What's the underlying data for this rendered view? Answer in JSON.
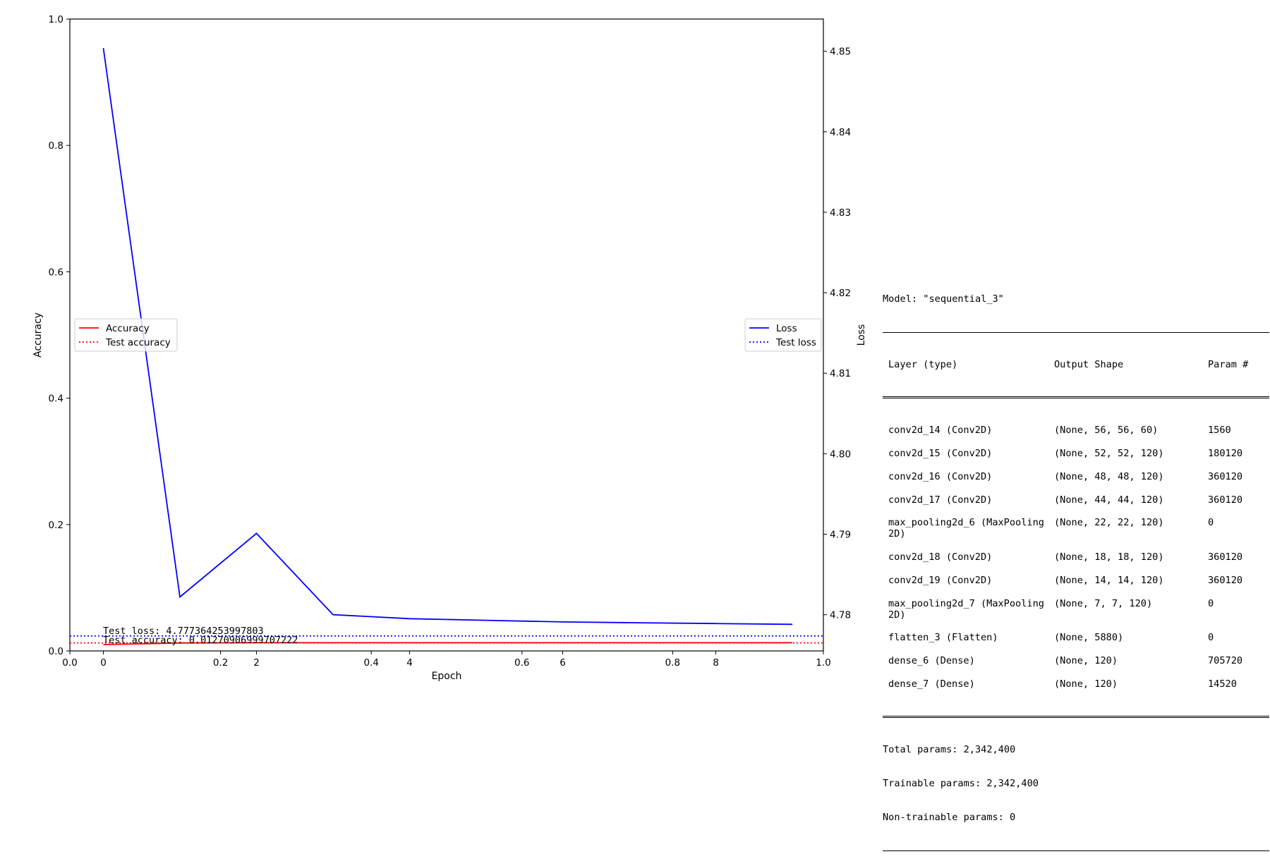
{
  "chart_data": {
    "type": "line",
    "xlabel": "Epoch",
    "ylabel_left": "Accuracy",
    "ylabel_right": "Loss",
    "x": [
      0,
      1,
      2,
      3,
      4,
      5,
      6,
      7,
      8,
      9
    ],
    "x_ticks": [
      "0",
      "2",
      "4",
      "6",
      "8"
    ],
    "overlay_x_ticks": [
      "0.0",
      "0.2",
      "0.4",
      "0.6",
      "0.8",
      "1.0"
    ],
    "left_axis": {
      "ylim": [
        0.0,
        1.0
      ],
      "ticks": [
        "0.0",
        "0.2",
        "0.4",
        "0.6",
        "0.8",
        "1.0"
      ]
    },
    "right_axis": {
      "ylim": [
        4.7755,
        4.854
      ],
      "ticks": [
        "4.78",
        "4.79",
        "4.80",
        "4.81",
        "4.82",
        "4.83",
        "4.84",
        "4.85"
      ]
    },
    "series": [
      {
        "name": "Accuracy",
        "axis": "left",
        "color": "#ff0000",
        "style": "solid",
        "values": [
          0.01,
          0.0125,
          0.013,
          0.013,
          0.013,
          0.013,
          0.013,
          0.013,
          0.013,
          0.013
        ]
      },
      {
        "name": "Loss",
        "axis": "right",
        "color": "#0000ff",
        "style": "solid",
        "values": [
          4.8504,
          4.7822,
          4.7901,
          4.78,
          4.7795,
          4.7793,
          4.7791,
          4.779,
          4.7789,
          4.7788
        ]
      }
    ],
    "hlines": [
      {
        "name": "Test accuracy",
        "axis": "left",
        "color": "#ff0000",
        "style": "dotted",
        "value": 0.01270906999707222
      },
      {
        "name": "Test loss",
        "axis": "right",
        "color": "#0000ff",
        "style": "dotted",
        "value": 4.777364253997803
      }
    ],
    "annotations": [
      "Test loss: 4.777364253997803",
      "Test accuracy: 0.01270906999707222"
    ],
    "legends": [
      {
        "placement": "center-left",
        "entries": [
          "Accuracy",
          "Test accuracy"
        ]
      },
      {
        "placement": "center-right",
        "entries": [
          "Loss",
          "Test loss"
        ]
      }
    ],
    "grid": false
  },
  "model_summary": {
    "title": "Model: \"sequential_3\"",
    "headers": [
      "Layer (type)",
      "Output Shape",
      "Param #"
    ],
    "layers": [
      {
        "name": "conv2d_14 (Conv2D)",
        "shape": "(None, 56, 56, 60)",
        "params": "1560"
      },
      {
        "name": "conv2d_15 (Conv2D)",
        "shape": "(None, 52, 52, 120)",
        "params": "180120"
      },
      {
        "name": "conv2d_16 (Conv2D)",
        "shape": "(None, 48, 48, 120)",
        "params": "360120"
      },
      {
        "name": "conv2d_17 (Conv2D)",
        "shape": "(None, 44, 44, 120)",
        "params": "360120"
      },
      {
        "name": "max_pooling2d_6 (MaxPooling",
        "name2": "2D)",
        "shape": "(None, 22, 22, 120)",
        "params": "0"
      },
      {
        "name": "conv2d_18 (Conv2D)",
        "shape": "(None, 18, 18, 120)",
        "params": "360120"
      },
      {
        "name": "conv2d_19 (Conv2D)",
        "shape": "(None, 14, 14, 120)",
        "params": "360120"
      },
      {
        "name": "max_pooling2d_7 (MaxPooling",
        "name2": "2D)",
        "shape": "(None, 7, 7, 120)",
        "params": "0"
      },
      {
        "name": "flatten_3 (Flatten)",
        "shape": "(None, 5880)",
        "params": "0"
      },
      {
        "name": "dense_6 (Dense)",
        "shape": "(None, 120)",
        "params": "705720"
      },
      {
        "name": "dense_7 (Dense)",
        "shape": "(None, 120)",
        "params": "14520"
      }
    ],
    "totals": [
      "Total params: 2,342,400",
      "Trainable params: 2,342,400",
      "Non-trainable params: 0"
    ]
  }
}
